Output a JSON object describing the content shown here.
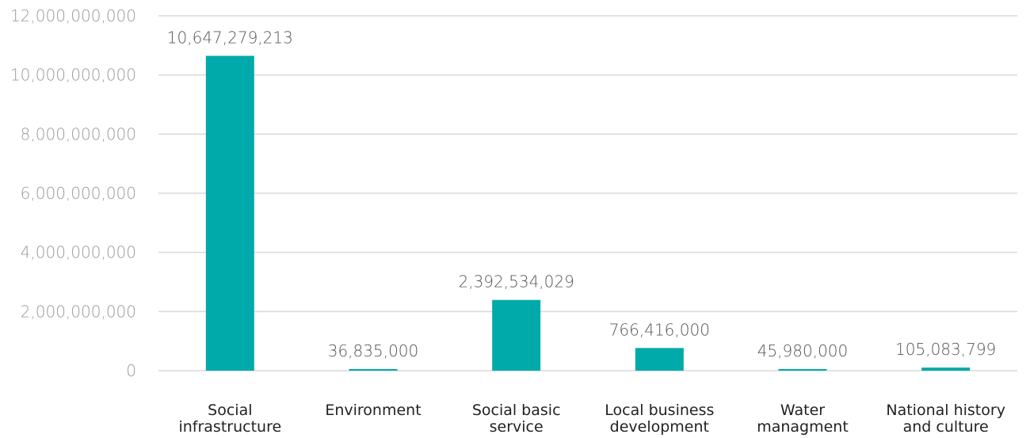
{
  "chart_data": {
    "type": "bar",
    "categories": [
      [
        "Social",
        "infrastructure"
      ],
      [
        "Environment"
      ],
      [
        "Social basic",
        "service"
      ],
      [
        "Local business",
        "development"
      ],
      [
        "Water",
        "managment"
      ],
      [
        "National history",
        "and culture"
      ]
    ],
    "values": [
      10647279213,
      36835000,
      2392534029,
      766416000,
      45980000,
      105083799
    ],
    "data_labels": [
      "10,647,279,213",
      "36,835,000",
      "2,392,534,029",
      "766,416,000",
      "45,980,000",
      "105,083,799"
    ],
    "y_ticks": [
      0,
      2000000000,
      4000000000,
      6000000000,
      8000000000,
      10000000000,
      12000000000
    ],
    "y_tick_labels": [
      "0",
      "2,000,000,000",
      "4,000,000,000",
      "6,000,000,000",
      "8,000,000,000",
      "10,000,000,000",
      "12,000,000,000"
    ],
    "ylim": [
      0,
      12000000000
    ],
    "title": "",
    "xlabel": "",
    "ylabel": "",
    "grid": true,
    "legend": "none",
    "bar_color": "#00aaaa"
  }
}
